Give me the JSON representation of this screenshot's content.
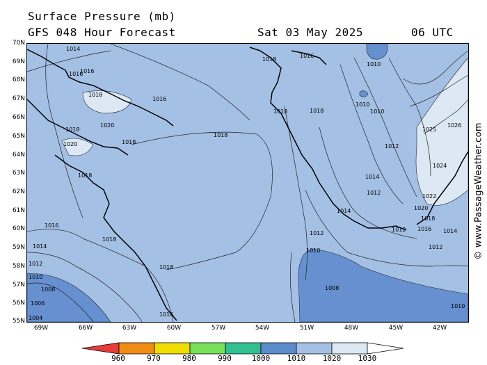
{
  "header": {
    "title": "Surface Pressure (mb)",
    "subtitle": "GFS 048 Hour Forecast",
    "date": "Sat 03 May 2025",
    "time": "06 UTC"
  },
  "axes": {
    "lat_labels": [
      "70N",
      "69N",
      "68N",
      "67N",
      "66N",
      "65N",
      "64N",
      "63N",
      "62N",
      "61N",
      "60N",
      "59N",
      "58N",
      "57N",
      "56N",
      "55N"
    ],
    "lon_labels": [
      "69W",
      "66W",
      "63W",
      "60W",
      "57W",
      "54W",
      "51W",
      "48W",
      "45W",
      "42W"
    ]
  },
  "contour_labels": [
    "1014",
    "1014",
    "1016",
    "1018",
    "1020",
    "1018",
    "1016",
    "1018",
    "1020",
    "1018",
    "1020",
    "1018",
    "1018",
    "1016",
    "1016",
    "1014",
    "1012",
    "1010",
    "1008",
    "1006",
    "1004",
    "1018",
    "1018",
    "1016",
    "1018",
    "1016",
    "1018",
    "1018",
    "1016",
    "1010",
    "1010",
    "1010",
    "1012",
    "1014",
    "1012",
    "1014",
    "1025",
    "1026",
    "1024",
    "1022",
    "1020",
    "1018",
    "1016",
    "1014",
    "1012",
    "1012",
    "1012",
    "1010",
    "1008",
    "1010",
    "1016",
    "1018",
    "1018"
  ],
  "colorbar": {
    "labels": [
      "960",
      "970",
      "980",
      "990",
      "1000",
      "1010",
      "1020",
      "1030"
    ],
    "colors": [
      "#e63c3c",
      "#f08c14",
      "#f0dc00",
      "#78e05a",
      "#32c090",
      "#5a8ccc",
      "#a4c0e4",
      "#dce8f4"
    ]
  },
  "copyright": "© www.PassageWeather.com"
}
